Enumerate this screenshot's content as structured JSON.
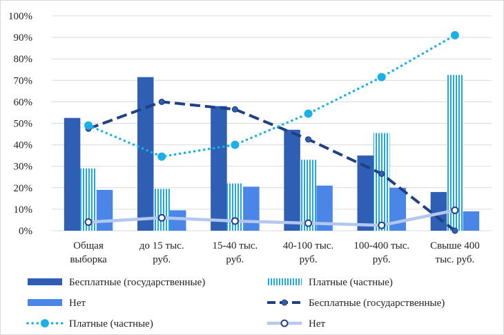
{
  "colors": {
    "gov_bar": "#2e5fb5",
    "paid_bar_stripe": "#1fa7e2",
    "none_bar": "#4a86e8",
    "gov_line": "#1f3f87",
    "paid_line": "#1cb0e8",
    "none_line": "#b4c7ee"
  },
  "chart_data": {
    "type": "bar",
    "categories": [
      [
        "Общая",
        "выборка"
      ],
      [
        "до 15 тыс.",
        "руб."
      ],
      [
        "15-40 тыс.",
        "руб."
      ],
      [
        "40-100 тыс.",
        "руб."
      ],
      [
        "100-400 тыс.",
        "руб."
      ],
      [
        "Свыше 400",
        "тыс. руб."
      ]
    ],
    "ylim": [
      0,
      100
    ],
    "yticks": [
      "0%",
      "10%",
      "20%",
      "30%",
      "40%",
      "50%",
      "60%",
      "70%",
      "80%",
      "90%",
      "100%"
    ],
    "grid": true,
    "legend_position": "bottom",
    "bar_series": [
      {
        "name": "Бесплатные (государственные)",
        "values": [
          52.5,
          71.5,
          58,
          47,
          35,
          18
        ],
        "style": "solid",
        "color_key": "gov_bar"
      },
      {
        "name": "Платные (частные)",
        "values": [
          29,
          19.5,
          22,
          33,
          45.5,
          72.5
        ],
        "style": "striped",
        "color_key": "paid_bar_stripe"
      },
      {
        "name": "Нет",
        "values": [
          19,
          9.5,
          20.5,
          21,
          20,
          9
        ],
        "style": "solid",
        "color_key": "none_bar"
      }
    ],
    "line_series": [
      {
        "name": "Бесплатные (государственные)",
        "values": [
          47.5,
          60,
          56.5,
          42.5,
          26.5,
          0
        ],
        "style": "dashed",
        "color_key": "gov_line"
      },
      {
        "name": "Платные (частные)",
        "values": [
          49,
          34.5,
          40,
          54.5,
          71.5,
          91
        ],
        "style": "dotted",
        "color_key": "paid_line"
      },
      {
        "name": "Нет",
        "values": [
          4,
          6,
          4.5,
          3.5,
          2.5,
          9.5
        ],
        "style": "solid",
        "color_key": "none_line"
      }
    ],
    "legend": [
      {
        "series": "bar",
        "index": 0
      },
      {
        "series": "bar",
        "index": 1
      },
      {
        "series": "bar",
        "index": 2
      },
      {
        "series": "line",
        "index": 0
      },
      {
        "series": "line",
        "index": 1
      },
      {
        "series": "line",
        "index": 2
      }
    ]
  }
}
